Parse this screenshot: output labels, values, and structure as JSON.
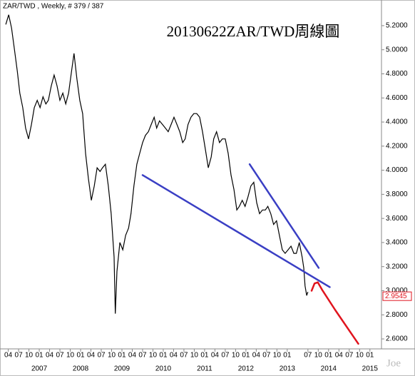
{
  "chart_data": {
    "type": "line",
    "header": "ZAR/TWD , Weekly, # 379 / 387",
    "title": "20130622ZAR/TWD周線圖",
    "watermark": "Joe",
    "series": [
      {
        "color": "#000000",
        "x": [
          2006.19,
          2006.26,
          2006.33,
          2006.4,
          2006.47,
          2006.53,
          2006.6,
          2006.67,
          2006.74,
          2006.81,
          2006.88,
          2006.95,
          2007.02,
          2007.09,
          2007.16,
          2007.22,
          2007.29,
          2007.36,
          2007.43,
          2007.5,
          2007.57,
          2007.64,
          2007.71,
          2007.78,
          2007.84,
          2007.91,
          2007.98,
          2008.05,
          2008.12,
          2008.19,
          2008.26,
          2008.33,
          2008.4,
          2008.47,
          2008.53,
          2008.6,
          2008.67,
          2008.74,
          2008.81,
          2008.84,
          2008.88,
          2008.95,
          2009.02,
          2009.09,
          2009.16,
          2009.22,
          2009.29,
          2009.36,
          2009.43,
          2009.5,
          2009.57,
          2009.64,
          2009.71,
          2009.78,
          2009.84,
          2009.91,
          2009.98,
          2010.05,
          2010.12,
          2010.19,
          2010.26,
          2010.33,
          2010.4,
          2010.47,
          2010.53,
          2010.6,
          2010.67,
          2010.74,
          2010.81,
          2010.88,
          2010.95,
          2011.02,
          2011.09,
          2011.16,
          2011.22,
          2011.29,
          2011.36,
          2011.43,
          2011.5,
          2011.57,
          2011.64,
          2011.71,
          2011.78,
          2011.84,
          2011.91,
          2011.98,
          2012.05,
          2012.12,
          2012.19,
          2012.26,
          2012.33,
          2012.4,
          2012.47,
          2012.53,
          2012.6,
          2012.67,
          2012.74,
          2012.81,
          2012.88,
          2012.95,
          2013.02,
          2013.09,
          2013.16,
          2013.22,
          2013.29,
          2013.36,
          2013.4,
          2013.43,
          2013.47,
          2013.5
        ],
        "values": [
          5.21,
          5.29,
          5.18,
          5.0,
          4.82,
          4.64,
          4.52,
          4.35,
          4.26,
          4.38,
          4.52,
          4.58,
          4.52,
          4.61,
          4.55,
          4.58,
          4.7,
          4.79,
          4.7,
          4.58,
          4.64,
          4.55,
          4.64,
          4.82,
          4.97,
          4.76,
          4.58,
          4.47,
          4.14,
          3.93,
          3.75,
          3.87,
          4.02,
          3.99,
          4.02,
          4.05,
          3.87,
          3.64,
          3.28,
          2.81,
          3.16,
          3.4,
          3.34,
          3.46,
          3.52,
          3.64,
          3.87,
          4.05,
          4.14,
          4.23,
          4.29,
          4.32,
          4.38,
          4.44,
          4.35,
          4.41,
          4.38,
          4.35,
          4.32,
          4.38,
          4.44,
          4.38,
          4.32,
          4.23,
          4.26,
          4.38,
          4.44,
          4.47,
          4.47,
          4.44,
          4.32,
          4.17,
          4.02,
          4.11,
          4.26,
          4.32,
          4.23,
          4.26,
          4.26,
          4.14,
          3.96,
          3.84,
          3.67,
          3.7,
          3.75,
          3.7,
          3.78,
          3.87,
          3.9,
          3.73,
          3.64,
          3.67,
          3.67,
          3.7,
          3.64,
          3.55,
          3.58,
          3.46,
          3.34,
          3.31,
          3.34,
          3.37,
          3.31,
          3.31,
          3.4,
          3.28,
          3.19,
          3.04,
          2.96,
          2.99
        ]
      }
    ],
    "lines": [
      {
        "color": "#3a3fc4",
        "x": [
          2009.5,
          2014.03
        ],
        "values": [
          3.96,
          3.03
        ]
      },
      {
        "color": "#3a3fc4",
        "x": [
          2012.09,
          2013.76
        ],
        "values": [
          4.05,
          3.19
        ]
      },
      {
        "color": "#e0141e",
        "x": [
          2013.59,
          2013.66,
          2013.74,
          2013.84,
          2014.16,
          2014.72
        ],
        "values": [
          3.0,
          3.06,
          3.07,
          3.01,
          2.84,
          2.56
        ]
      }
    ],
    "last_value": 2.9545,
    "xlim": [
      2006.05,
      2015.28
    ],
    "ylim": [
      2.541,
      5.324
    ],
    "yticks": [
      {
        "value": 2.6,
        "label": "2.6000"
      },
      {
        "value": 2.8,
        "label": "2.8000"
      },
      {
        "value": 3.0,
        "label": "3.0000"
      },
      {
        "value": 3.2,
        "label": "3.2000"
      },
      {
        "value": 3.4,
        "label": "3.4000"
      },
      {
        "value": 3.6,
        "label": "3.6000"
      },
      {
        "value": 3.8,
        "label": "3.8000"
      },
      {
        "value": 4.0,
        "label": "4.0000"
      },
      {
        "value": 4.2,
        "label": "4.2000"
      },
      {
        "value": 4.4,
        "label": "4.4000"
      },
      {
        "value": 4.6,
        "label": "4.6000"
      },
      {
        "value": 4.8,
        "label": "4.8000"
      },
      {
        "value": 5.0,
        "label": "5.0000"
      },
      {
        "value": 5.2,
        "label": "5.2000"
      }
    ],
    "xticks": [
      {
        "value": 2006.25,
        "label": "04"
      },
      {
        "value": 2006.5,
        "label": "07"
      },
      {
        "value": 2006.75,
        "label": "10"
      },
      {
        "value": 2007.0,
        "label": "01"
      },
      {
        "value": 2007.25,
        "label": "04"
      },
      {
        "value": 2007.5,
        "label": "07"
      },
      {
        "value": 2007.75,
        "label": "10"
      },
      {
        "value": 2008.0,
        "label": "01"
      },
      {
        "value": 2008.25,
        "label": "04"
      },
      {
        "value": 2008.5,
        "label": "07"
      },
      {
        "value": 2008.75,
        "label": "10"
      },
      {
        "value": 2009.0,
        "label": "01"
      },
      {
        "value": 2009.25,
        "label": "04"
      },
      {
        "value": 2009.5,
        "label": "07"
      },
      {
        "value": 2009.75,
        "label": "10"
      },
      {
        "value": 2010.0,
        "label": "01"
      },
      {
        "value": 2010.25,
        "label": "04"
      },
      {
        "value": 2010.5,
        "label": "07"
      },
      {
        "value": 2010.75,
        "label": "10"
      },
      {
        "value": 2011.0,
        "label": "01"
      },
      {
        "value": 2011.25,
        "label": "04"
      },
      {
        "value": 2011.5,
        "label": "07"
      },
      {
        "value": 2011.75,
        "label": "10"
      },
      {
        "value": 2012.0,
        "label": "01"
      },
      {
        "value": 2012.25,
        "label": "04"
      },
      {
        "value": 2012.5,
        "label": "07"
      },
      {
        "value": 2012.75,
        "label": "10"
      },
      {
        "value": 2013.0,
        "label": "01"
      },
      {
        "value": 2013.5,
        "label": "07"
      },
      {
        "value": 2013.75,
        "label": "10"
      },
      {
        "value": 2014.0,
        "label": "01"
      },
      {
        "value": 2014.25,
        "label": "04"
      },
      {
        "value": 2014.5,
        "label": "07"
      },
      {
        "value": 2014.75,
        "label": "10"
      },
      {
        "value": 2015.0,
        "label": "01"
      }
    ],
    "year_ticks": [
      2007,
      2008,
      2009,
      2010,
      2011,
      2012,
      2013,
      2014,
      2015
    ]
  }
}
